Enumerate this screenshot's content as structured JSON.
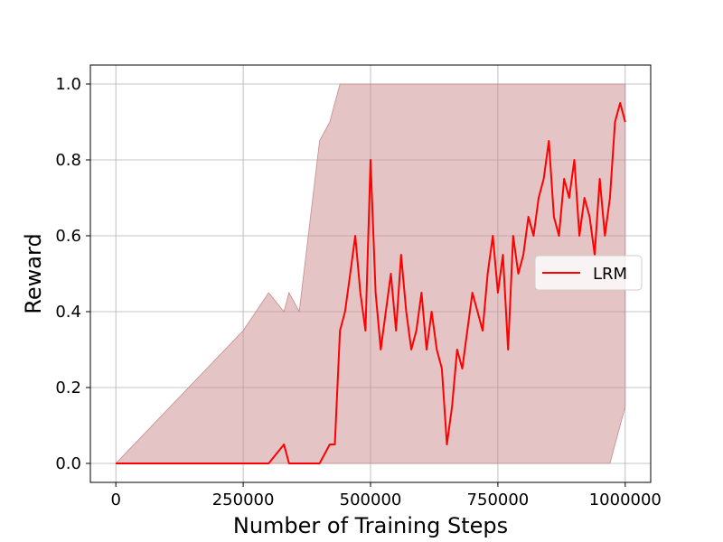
{
  "chart_data": {
    "type": "line",
    "title": "",
    "xlabel": "Number of Training Steps",
    "ylabel": "Reward",
    "xlim": [
      -50000,
      1050000
    ],
    "ylim": [
      -0.05,
      1.05
    ],
    "xticks": [
      0,
      250000,
      500000,
      750000,
      1000000
    ],
    "xtick_labels": [
      "0",
      "250000",
      "500000",
      "750000",
      "1000000"
    ],
    "yticks": [
      0.0,
      0.2,
      0.4,
      0.6,
      0.8,
      1.0
    ],
    "ytick_labels": [
      "0.0",
      "0.2",
      "0.4",
      "0.6",
      "0.8",
      "1.0"
    ],
    "grid": true,
    "legend_position": "right",
    "series": [
      {
        "name": "LRM",
        "color": "#ff0000",
        "band_color": "#c98a8a",
        "x": [
          0,
          250000,
          300000,
          330000,
          340000,
          360000,
          400000,
          420000,
          430000,
          440000,
          450000,
          460000,
          470000,
          480000,
          490000,
          500000,
          510000,
          520000,
          530000,
          540000,
          550000,
          560000,
          570000,
          580000,
          590000,
          600000,
          610000,
          620000,
          630000,
          640000,
          650000,
          660000,
          670000,
          680000,
          690000,
          700000,
          710000,
          720000,
          730000,
          740000,
          750000,
          760000,
          770000,
          780000,
          790000,
          800000,
          810000,
          820000,
          830000,
          840000,
          850000,
          860000,
          870000,
          880000,
          890000,
          900000,
          910000,
          920000,
          930000,
          940000,
          950000,
          960000,
          970000,
          980000,
          990000,
          1000000
        ],
        "mean": [
          0,
          0,
          0,
          0.05,
          0,
          0,
          0,
          0.05,
          0.05,
          0.35,
          0.4,
          0.5,
          0.6,
          0.45,
          0.35,
          0.8,
          0.45,
          0.3,
          0.4,
          0.5,
          0.35,
          0.55,
          0.4,
          0.3,
          0.35,
          0.45,
          0.3,
          0.4,
          0.3,
          0.25,
          0.05,
          0.15,
          0.3,
          0.25,
          0.35,
          0.45,
          0.4,
          0.35,
          0.5,
          0.6,
          0.45,
          0.55,
          0.3,
          0.6,
          0.5,
          0.55,
          0.65,
          0.6,
          0.7,
          0.75,
          0.85,
          0.65,
          0.6,
          0.75,
          0.7,
          0.8,
          0.6,
          0.7,
          0.65,
          0.55,
          0.75,
          0.6,
          0.7,
          0.9,
          0.95,
          0.9
        ],
        "lower": [
          0,
          0,
          0,
          0,
          0,
          0,
          0,
          0,
          0,
          0,
          0,
          0,
          0,
          0,
          0,
          0,
          0,
          0,
          0,
          0,
          0,
          0,
          0,
          0,
          0,
          0,
          0,
          0,
          0,
          0,
          0,
          0,
          0,
          0,
          0,
          0,
          0,
          0,
          0,
          0,
          0,
          0,
          0,
          0,
          0,
          0,
          0,
          0,
          0,
          0,
          0,
          0,
          0,
          0,
          0,
          0,
          0,
          0,
          0,
          0,
          0,
          0,
          0,
          0.05,
          0.1,
          0.15
        ],
        "upper": [
          0,
          0.35,
          0.45,
          0.4,
          0.45,
          0.4,
          0.85,
          0.9,
          0.95,
          1.0,
          1.0,
          1.0,
          1.0,
          1.0,
          1.0,
          1.0,
          1.0,
          1.0,
          1.0,
          1.0,
          1.0,
          1.0,
          1.0,
          1.0,
          1.0,
          1.0,
          1.0,
          1.0,
          1.0,
          1.0,
          1.0,
          1.0,
          1.0,
          1.0,
          1.0,
          1.0,
          1.0,
          1.0,
          1.0,
          1.0,
          1.0,
          1.0,
          1.0,
          1.0,
          1.0,
          1.0,
          1.0,
          1.0,
          1.0,
          1.0,
          1.0,
          1.0,
          1.0,
          1.0,
          1.0,
          1.0,
          1.0,
          1.0,
          1.0,
          1.0,
          1.0,
          1.0,
          1.0,
          1.0,
          1.0,
          1.0
        ]
      }
    ]
  }
}
